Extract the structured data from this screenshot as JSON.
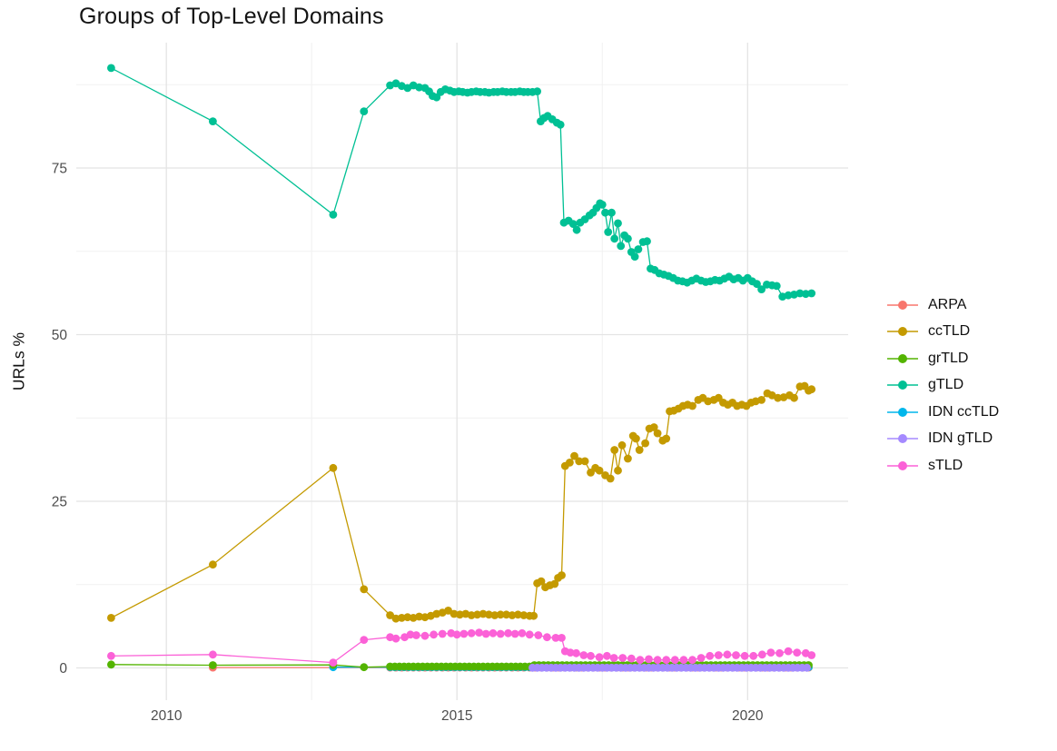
{
  "title": "Groups of Top-Level Domains",
  "axes": {
    "y_label": "URLs %",
    "y_tick_labels": [
      "0",
      "25",
      "50",
      "75"
    ],
    "x_tick_labels": [
      "2010",
      "2015",
      "2020"
    ]
  },
  "legend": {
    "position": "right",
    "items": [
      {
        "label": "ARPA",
        "color": "#F8766D"
      },
      {
        "label": "ccTLD",
        "color": "#C49A00"
      },
      {
        "label": "grTLD",
        "color": "#53B400"
      },
      {
        "label": "gTLD",
        "color": "#00C094"
      },
      {
        "label": "IDN ccTLD",
        "color": "#00B6EB"
      },
      {
        "label": "IDN gTLD",
        "color": "#A58AFF"
      },
      {
        "label": "sTLD",
        "color": "#FB61D7"
      }
    ]
  },
  "chart_data": {
    "type": "line",
    "title": "Groups of Top-Level Domains",
    "xlabel": "",
    "ylabel": "URLs %",
    "xlim": [
      2008.45,
      2021.73
    ],
    "ylim": [
      -4.84,
      93.8
    ],
    "x_ticks": [
      2010,
      2015,
      2020
    ],
    "y_ticks": [
      0,
      25,
      50,
      75
    ],
    "x_minor": [
      2012.5,
      2017.5
    ],
    "y_minor": [
      12.5,
      37.5,
      62.5,
      87.5
    ],
    "grid": true,
    "legend_position": "right",
    "draw_order": [
      "ARPA",
      "IDN ccTLD",
      "grTLD",
      "IDN gTLD",
      "ccTLD",
      "gTLD",
      "sTLD"
    ],
    "series": [
      {
        "name": "ARPA",
        "color": "#F8766D",
        "points": [
          [
            2010.8,
            0.05
          ]
        ],
        "runs": [
          {
            "from": 2013.85,
            "to": 2021.09,
            "step": 0.1,
            "value": 0.05
          }
        ]
      },
      {
        "name": "ccTLD",
        "color": "#C49A00",
        "points": [
          [
            2009.05,
            7.5
          ],
          [
            2010.8,
            15.5
          ],
          [
            2012.87,
            30.0
          ],
          [
            2013.4,
            11.8
          ],
          [
            2013.85,
            7.9
          ],
          [
            2013.95,
            7.4
          ],
          [
            2014.05,
            7.5
          ],
          [
            2014.15,
            7.6
          ],
          [
            2014.25,
            7.5
          ],
          [
            2014.35,
            7.7
          ],
          [
            2014.45,
            7.6
          ],
          [
            2014.55,
            7.8
          ],
          [
            2014.65,
            8.1
          ],
          [
            2014.75,
            8.3
          ],
          [
            2014.85,
            8.6
          ],
          [
            2014.95,
            8.1
          ],
          [
            2015.05,
            8.0
          ],
          [
            2015.15,
            8.1
          ],
          [
            2015.25,
            7.9
          ],
          [
            2015.35,
            8.0
          ],
          [
            2015.45,
            8.1
          ],
          [
            2015.55,
            8.0
          ],
          [
            2015.65,
            7.9
          ],
          [
            2015.75,
            8.0
          ],
          [
            2015.85,
            8.0
          ],
          [
            2015.95,
            7.9
          ],
          [
            2016.05,
            8.0
          ],
          [
            2016.15,
            7.9
          ],
          [
            2016.25,
            7.8
          ],
          [
            2016.32,
            7.8
          ],
          [
            2016.38,
            12.7
          ],
          [
            2016.45,
            13.0
          ],
          [
            2016.52,
            12.1
          ],
          [
            2016.6,
            12.4
          ],
          [
            2016.68,
            12.6
          ],
          [
            2016.74,
            13.5
          ],
          [
            2016.8,
            13.9
          ],
          [
            2016.86,
            30.3
          ],
          [
            2016.94,
            30.8
          ],
          [
            2017.02,
            31.8
          ],
          [
            2017.1,
            31.0
          ],
          [
            2017.2,
            31.0
          ],
          [
            2017.3,
            29.3
          ],
          [
            2017.38,
            30.0
          ],
          [
            2017.45,
            29.6
          ],
          [
            2017.55,
            28.9
          ],
          [
            2017.64,
            28.4
          ],
          [
            2017.71,
            32.7
          ],
          [
            2017.77,
            29.6
          ],
          [
            2017.84,
            33.4
          ],
          [
            2017.94,
            31.4
          ],
          [
            2018.03,
            34.8
          ],
          [
            2018.08,
            34.4
          ],
          [
            2018.14,
            32.7
          ],
          [
            2018.24,
            33.7
          ],
          [
            2018.31,
            35.9
          ],
          [
            2018.39,
            36.1
          ],
          [
            2018.45,
            35.2
          ],
          [
            2018.54,
            34.1
          ],
          [
            2018.6,
            34.4
          ],
          [
            2018.66,
            38.5
          ],
          [
            2018.73,
            38.6
          ],
          [
            2018.81,
            38.9
          ],
          [
            2018.89,
            39.3
          ],
          [
            2018.97,
            39.5
          ],
          [
            2019.05,
            39.3
          ],
          [
            2019.15,
            40.2
          ],
          [
            2019.23,
            40.5
          ],
          [
            2019.32,
            40.0
          ],
          [
            2019.42,
            40.2
          ],
          [
            2019.5,
            40.5
          ],
          [
            2019.58,
            39.8
          ],
          [
            2019.66,
            39.5
          ],
          [
            2019.74,
            39.8
          ],
          [
            2019.82,
            39.3
          ],
          [
            2019.9,
            39.5
          ],
          [
            2019.98,
            39.3
          ],
          [
            2020.06,
            39.8
          ],
          [
            2020.14,
            40.0
          ],
          [
            2020.24,
            40.2
          ],
          [
            2020.34,
            41.2
          ],
          [
            2020.42,
            40.9
          ],
          [
            2020.52,
            40.5
          ],
          [
            2020.62,
            40.6
          ],
          [
            2020.72,
            40.9
          ],
          [
            2020.8,
            40.5
          ],
          [
            2020.9,
            42.2
          ],
          [
            2020.98,
            42.3
          ],
          [
            2021.05,
            41.6
          ],
          [
            2021.1,
            41.8
          ]
        ]
      },
      {
        "name": "grTLD",
        "color": "#53B400",
        "points": [
          [
            2009.05,
            0.5
          ],
          [
            2010.8,
            0.4
          ],
          [
            2012.87,
            0.45
          ],
          [
            2013.4,
            0.1
          ]
        ],
        "runs": [
          {
            "from": 2013.85,
            "to": 2016.25,
            "step": 0.08,
            "value": 0.2
          },
          {
            "from": 2016.33,
            "to": 2021.09,
            "step": 0.08,
            "value": 0.4
          }
        ]
      },
      {
        "name": "gTLD",
        "color": "#00C094",
        "points": [
          [
            2009.05,
            90.0
          ],
          [
            2010.8,
            82.0
          ],
          [
            2012.87,
            68.0
          ],
          [
            2013.4,
            83.5
          ],
          [
            2013.85,
            87.4
          ],
          [
            2013.95,
            87.7
          ],
          [
            2014.05,
            87.3
          ],
          [
            2014.15,
            87.0
          ],
          [
            2014.25,
            87.4
          ],
          [
            2014.35,
            87.1
          ],
          [
            2014.45,
            87.0
          ],
          [
            2014.52,
            86.5
          ],
          [
            2014.58,
            85.8
          ],
          [
            2014.65,
            85.6
          ],
          [
            2014.72,
            86.4
          ],
          [
            2014.8,
            86.8
          ],
          [
            2014.88,
            86.6
          ],
          [
            2014.95,
            86.4
          ],
          [
            2015.03,
            86.5
          ],
          [
            2015.1,
            86.4
          ],
          [
            2015.18,
            86.3
          ],
          [
            2015.25,
            86.4
          ],
          [
            2015.33,
            86.5
          ],
          [
            2015.4,
            86.4
          ],
          [
            2015.48,
            86.4
          ],
          [
            2015.55,
            86.3
          ],
          [
            2015.63,
            86.4
          ],
          [
            2015.7,
            86.4
          ],
          [
            2015.78,
            86.5
          ],
          [
            2015.85,
            86.4
          ],
          [
            2015.93,
            86.4
          ],
          [
            2016.0,
            86.4
          ],
          [
            2016.08,
            86.5
          ],
          [
            2016.15,
            86.4
          ],
          [
            2016.22,
            86.4
          ],
          [
            2016.3,
            86.4
          ],
          [
            2016.38,
            86.5
          ],
          [
            2016.44,
            82.0
          ],
          [
            2016.5,
            82.5
          ],
          [
            2016.56,
            82.8
          ],
          [
            2016.64,
            82.3
          ],
          [
            2016.72,
            81.8
          ],
          [
            2016.78,
            81.5
          ],
          [
            2016.84,
            66.8
          ],
          [
            2016.92,
            67.1
          ],
          [
            2017.0,
            66.6
          ],
          [
            2017.06,
            65.7
          ],
          [
            2017.12,
            66.8
          ],
          [
            2017.2,
            67.3
          ],
          [
            2017.28,
            67.9
          ],
          [
            2017.34,
            68.3
          ],
          [
            2017.4,
            69.0
          ],
          [
            2017.46,
            69.7
          ],
          [
            2017.5,
            69.5
          ],
          [
            2017.55,
            68.3
          ],
          [
            2017.6,
            65.4
          ],
          [
            2017.66,
            68.3
          ],
          [
            2017.71,
            64.4
          ],
          [
            2017.77,
            66.7
          ],
          [
            2017.82,
            63.3
          ],
          [
            2017.88,
            64.9
          ],
          [
            2017.94,
            64.4
          ],
          [
            2018.0,
            62.4
          ],
          [
            2018.06,
            61.7
          ],
          [
            2018.12,
            62.8
          ],
          [
            2018.2,
            63.9
          ],
          [
            2018.27,
            64.0
          ],
          [
            2018.33,
            59.9
          ],
          [
            2018.4,
            59.7
          ],
          [
            2018.48,
            59.2
          ],
          [
            2018.56,
            59.0
          ],
          [
            2018.64,
            58.8
          ],
          [
            2018.72,
            58.5
          ],
          [
            2018.8,
            58.1
          ],
          [
            2018.88,
            58.0
          ],
          [
            2018.96,
            57.8
          ],
          [
            2019.04,
            58.1
          ],
          [
            2019.12,
            58.4
          ],
          [
            2019.2,
            58.1
          ],
          [
            2019.28,
            57.9
          ],
          [
            2019.36,
            58.0
          ],
          [
            2019.44,
            58.2
          ],
          [
            2019.52,
            58.1
          ],
          [
            2019.6,
            58.4
          ],
          [
            2019.68,
            58.7
          ],
          [
            2019.76,
            58.3
          ],
          [
            2019.84,
            58.5
          ],
          [
            2019.92,
            58.1
          ],
          [
            2020.0,
            58.5
          ],
          [
            2020.08,
            58.0
          ],
          [
            2020.16,
            57.6
          ],
          [
            2020.24,
            56.8
          ],
          [
            2020.33,
            57.5
          ],
          [
            2020.42,
            57.4
          ],
          [
            2020.5,
            57.3
          ],
          [
            2020.6,
            55.7
          ],
          [
            2020.7,
            55.9
          ],
          [
            2020.8,
            56.0
          ],
          [
            2020.9,
            56.2
          ],
          [
            2021.0,
            56.1
          ],
          [
            2021.1,
            56.2
          ]
        ]
      },
      {
        "name": "IDN ccTLD",
        "color": "#00B6EB",
        "points": [
          [
            2012.87,
            0.1
          ]
        ],
        "runs": [
          {
            "from": 2013.85,
            "to": 2021.09,
            "step": 0.08,
            "value": 0.1
          }
        ]
      },
      {
        "name": "IDN gTLD",
        "color": "#A58AFF",
        "points": [],
        "runs": [
          {
            "from": 2016.3,
            "to": 2021.09,
            "step": 0.08,
            "value": 0.02
          }
        ]
      },
      {
        "name": "sTLD",
        "color": "#FB61D7",
        "points": [
          [
            2009.05,
            1.8
          ],
          [
            2010.8,
            2.0
          ],
          [
            2012.87,
            0.8
          ],
          [
            2013.4,
            4.2
          ],
          [
            2013.85,
            4.6
          ],
          [
            2013.95,
            4.4
          ],
          [
            2014.1,
            4.6
          ],
          [
            2014.2,
            5.0
          ],
          [
            2014.3,
            4.9
          ],
          [
            2014.45,
            4.8
          ],
          [
            2014.6,
            5.0
          ],
          [
            2014.75,
            5.1
          ],
          [
            2014.9,
            5.2
          ],
          [
            2015.0,
            5.0
          ],
          [
            2015.12,
            5.1
          ],
          [
            2015.25,
            5.2
          ],
          [
            2015.38,
            5.3
          ],
          [
            2015.5,
            5.1
          ],
          [
            2015.62,
            5.2
          ],
          [
            2015.75,
            5.1
          ],
          [
            2015.88,
            5.2
          ],
          [
            2016.0,
            5.1
          ],
          [
            2016.12,
            5.2
          ],
          [
            2016.25,
            5.0
          ],
          [
            2016.4,
            4.9
          ],
          [
            2016.55,
            4.6
          ],
          [
            2016.7,
            4.5
          ],
          [
            2016.8,
            4.5
          ],
          [
            2016.86,
            2.5
          ],
          [
            2016.95,
            2.3
          ],
          [
            2017.05,
            2.2
          ],
          [
            2017.18,
            1.9
          ],
          [
            2017.3,
            1.8
          ],
          [
            2017.45,
            1.6
          ],
          [
            2017.58,
            1.8
          ],
          [
            2017.7,
            1.5
          ],
          [
            2017.85,
            1.5
          ],
          [
            2018.0,
            1.4
          ],
          [
            2018.15,
            1.2
          ],
          [
            2018.3,
            1.3
          ],
          [
            2018.45,
            1.2
          ],
          [
            2018.6,
            1.2
          ],
          [
            2018.75,
            1.2
          ],
          [
            2018.9,
            1.2
          ],
          [
            2019.05,
            1.2
          ],
          [
            2019.2,
            1.5
          ],
          [
            2019.35,
            1.8
          ],
          [
            2019.5,
            1.9
          ],
          [
            2019.65,
            2.0
          ],
          [
            2019.8,
            1.9
          ],
          [
            2019.95,
            1.8
          ],
          [
            2020.1,
            1.8
          ],
          [
            2020.25,
            2.0
          ],
          [
            2020.4,
            2.3
          ],
          [
            2020.55,
            2.2
          ],
          [
            2020.7,
            2.5
          ],
          [
            2020.85,
            2.3
          ],
          [
            2021.0,
            2.2
          ],
          [
            2021.1,
            1.9
          ]
        ]
      }
    ],
    "style": {
      "grid_major_color": "#e4e4e4",
      "grid_minor_color": "#f1f1f1",
      "background": "#ffffff",
      "point_radius": 4.4,
      "line_width": 1.3
    }
  }
}
